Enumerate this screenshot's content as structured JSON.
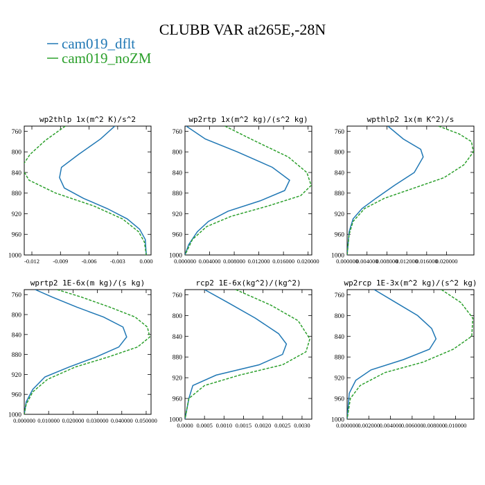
{
  "figure_title": "CLUBB VAR at265E,-28N",
  "colors": {
    "dflt": "#1f77b4",
    "noZM": "#2ca02c"
  },
  "legend": [
    {
      "label": "cam019_dflt",
      "color": "#1f77b4",
      "dashed": false
    },
    {
      "label": "cam019_noZM",
      "color": "#2ca02c",
      "dashed": true
    }
  ],
  "chart_data": [
    {
      "type": "line",
      "title": "wp2thlp  1x(m^2 K)/s^2",
      "xlim": [
        -0.0128,
        0.0005
      ],
      "ylim": [
        1000,
        750
      ],
      "xticks": [
        -0.012,
        -0.009,
        -0.006,
        -0.003,
        0.0
      ],
      "xtick_labels": [
        "-0.012",
        "-0.009",
        "-0.006",
        "-0.003",
        "0.000"
      ],
      "yticks": [
        760,
        800,
        840,
        880,
        920,
        960,
        1000
      ],
      "series": [
        {
          "name": "cam019_dflt",
          "x": [
            -0.0033,
            -0.0048,
            -0.0071,
            -0.0089,
            -0.0091,
            -0.0086,
            -0.0066,
            -0.0041,
            -0.002,
            -0.0007,
            -0.0001,
            0.0
          ],
          "y": [
            750,
            775,
            805,
            830,
            850,
            870,
            890,
            910,
            930,
            950,
            970,
            1000
          ]
        },
        {
          "name": "cam019_noZM",
          "x": [
            -0.0085,
            -0.0106,
            -0.0122,
            -0.0131,
            -0.0123,
            -0.0095,
            -0.0055,
            -0.0025,
            -0.0008,
            -0.0002,
            0.0
          ],
          "y": [
            750,
            778,
            805,
            830,
            855,
            880,
            905,
            930,
            955,
            975,
            1000
          ]
        }
      ]
    },
    {
      "type": "line",
      "title": "wp2rtp  1x(m^2 kg)/(s^2 kg)",
      "xlim": [
        0.0,
        0.0206
      ],
      "ylim": [
        1000,
        750
      ],
      "xticks": [
        0.0,
        0.004,
        0.008,
        0.012,
        0.016,
        0.02
      ],
      "xtick_labels": [
        "0.000000",
        "0.004000",
        "0.008000",
        "0.012000",
        "0.016000",
        "0.020000"
      ],
      "yticks": [
        760,
        800,
        840,
        880,
        920,
        960,
        1000
      ],
      "series": [
        {
          "name": "cam019_dflt",
          "x": [
            0.0002,
            0.0033,
            0.0085,
            0.0142,
            0.017,
            0.0162,
            0.0122,
            0.007,
            0.0038,
            0.002,
            0.0006,
            0.0
          ],
          "y": [
            750,
            775,
            800,
            830,
            855,
            875,
            895,
            915,
            935,
            955,
            980,
            1000
          ]
        },
        {
          "name": "cam019_noZM",
          "x": [
            0.0065,
            0.0112,
            0.0168,
            0.0198,
            0.0205,
            0.0188,
            0.0135,
            0.0075,
            0.0035,
            0.0012,
            0.0
          ],
          "y": [
            750,
            778,
            810,
            840,
            865,
            885,
            905,
            925,
            945,
            970,
            1000
          ]
        }
      ]
    },
    {
      "type": "line",
      "title": "wpthlp2  1x(m K^2)/s",
      "xlim": [
        0.0,
        0.0255
      ],
      "ylim": [
        1000,
        750
      ],
      "xticks": [
        0.0,
        0.004,
        0.008,
        0.012,
        0.016,
        0.02
      ],
      "xtick_labels": [
        "0.000000",
        "0.004000",
        "0.008000",
        "0.012000",
        "0.016000",
        "0.020000"
      ],
      "yticks": [
        760,
        800,
        840,
        880,
        920,
        960,
        1000
      ],
      "series": [
        {
          "name": "cam019_dflt",
          "x": [
            0.0082,
            0.0113,
            0.0148,
            0.0153,
            0.0135,
            0.0095,
            0.0058,
            0.003,
            0.0012,
            0.0004,
            0.0
          ],
          "y": [
            750,
            775,
            795,
            810,
            840,
            865,
            890,
            910,
            930,
            955,
            1000
          ]
        },
        {
          "name": "cam019_noZM",
          "x": [
            0.0184,
            0.0225,
            0.025,
            0.0254,
            0.0235,
            0.0195,
            0.0135,
            0.0075,
            0.0035,
            0.0012,
            0.0004,
            0.0
          ],
          "y": [
            750,
            765,
            780,
            800,
            825,
            850,
            870,
            890,
            910,
            935,
            960,
            1000
          ]
        }
      ]
    },
    {
      "type": "line",
      "title": "wprtp2  1E-6x(m kg)/(s kg)",
      "xlim": [
        0.0,
        0.052
      ],
      "ylim": [
        1000,
        750
      ],
      "xticks": [
        0.0,
        0.01,
        0.02,
        0.03,
        0.04,
        0.05
      ],
      "xtick_labels": [
        "0.000000",
        "0.010000",
        "0.020000",
        "0.030000",
        "0.040000",
        "0.050000"
      ],
      "yticks": [
        760,
        800,
        840,
        880,
        920,
        960,
        1000
      ],
      "series": [
        {
          "name": "cam019_dflt",
          "x": [
            0.0045,
            0.0115,
            0.0215,
            0.0325,
            0.0405,
            0.042,
            0.0388,
            0.0295,
            0.0185,
            0.0085,
            0.0035,
            0.0008,
            0.0
          ],
          "y": [
            750,
            765,
            785,
            805,
            825,
            845,
            865,
            885,
            905,
            925,
            950,
            975,
            1000
          ]
        },
        {
          "name": "cam019_noZM",
          "x": [
            0.0135,
            0.0235,
            0.035,
            0.0455,
            0.0505,
            0.0515,
            0.0465,
            0.0345,
            0.021,
            0.0095,
            0.0035,
            0.0008,
            0.0
          ],
          "y": [
            750,
            765,
            785,
            805,
            825,
            845,
            865,
            885,
            905,
            930,
            955,
            980,
            1000
          ]
        }
      ]
    },
    {
      "type": "line",
      "title": "rcp2  1E-6x(kg^2)/(kg^2)",
      "xlim": [
        0.0,
        0.00325
      ],
      "ylim": [
        1000,
        750
      ],
      "xticks": [
        0.0,
        0.0005,
        0.001,
        0.0015,
        0.002,
        0.0025,
        0.003
      ],
      "xtick_labels": [
        "0.0000",
        "0.0005",
        "0.0010",
        "0.0015",
        "0.0020",
        "0.0025",
        "0.0030"
      ],
      "yticks": [
        760,
        800,
        840,
        880,
        920,
        960,
        1000
      ],
      "series": [
        {
          "name": "cam019_dflt",
          "x": [
            0.0005,
            0.0011,
            0.0018,
            0.0024,
            0.0026,
            0.0025,
            0.0019,
            0.0008,
            0.0002,
            0.0001,
            0.0
          ],
          "y": [
            750,
            775,
            805,
            835,
            855,
            875,
            895,
            915,
            935,
            960,
            1000
          ]
        },
        {
          "name": "cam019_noZM",
          "x": [
            0.0013,
            0.0022,
            0.0029,
            0.0032,
            0.0031,
            0.0025,
            0.0014,
            0.0005,
            0.0001,
            0.0
          ],
          "y": [
            750,
            780,
            810,
            845,
            870,
            895,
            915,
            935,
            960,
            1000
          ]
        }
      ]
    },
    {
      "type": "line",
      "title": "wp2rcp  1E-3x(m^2 kg)/(s^2 kg)",
      "xlim": [
        0.0,
        0.0117
      ],
      "ylim": [
        1000,
        750
      ],
      "xticks": [
        0.0,
        0.002,
        0.004,
        0.006,
        0.008,
        0.01
      ],
      "xtick_labels": [
        "0.000000",
        "0.002000",
        "0.004000",
        "0.006000",
        "0.008000",
        "0.010000"
      ],
      "yticks": [
        760,
        800,
        840,
        880,
        920,
        960,
        1000
      ],
      "series": [
        {
          "name": "cam019_dflt",
          "x": [
            0.0025,
            0.0045,
            0.0065,
            0.0078,
            0.0082,
            0.0076,
            0.0052,
            0.0022,
            0.0008,
            0.0002,
            0.0
          ],
          "y": [
            750,
            775,
            800,
            825,
            845,
            865,
            885,
            905,
            925,
            950,
            1000
          ]
        },
        {
          "name": "cam019_noZM",
          "x": [
            0.0087,
            0.0105,
            0.0116,
            0.0115,
            0.0098,
            0.007,
            0.0035,
            0.0012,
            0.0003,
            0.0
          ],
          "y": [
            750,
            775,
            805,
            840,
            865,
            890,
            910,
            935,
            960,
            1000
          ]
        }
      ]
    }
  ]
}
